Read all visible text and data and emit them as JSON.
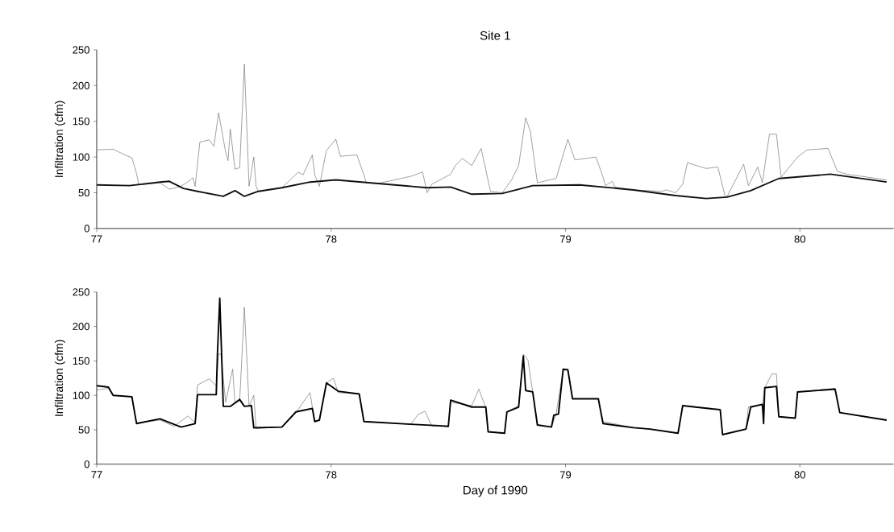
{
  "chart_data": [
    {
      "type": "line",
      "title": "Site 1",
      "ylabel": "Infiltration (cfm)",
      "xlim": [
        77,
        80.4
      ],
      "ylim": [
        0,
        250
      ],
      "xticks": [
        77,
        78,
        79,
        80
      ],
      "yticks": [
        0,
        50,
        100,
        150,
        200,
        250
      ],
      "series": [
        {
          "color": "#777777",
          "x": [
            77.0,
            77.07,
            77.12,
            77.15,
            77.17,
            77.18,
            77.27,
            77.31,
            77.35,
            77.38,
            77.41,
            77.42,
            77.44,
            77.48,
            77.5,
            77.52,
            77.55,
            77.56,
            77.57,
            77.59,
            77.61,
            77.63,
            77.65,
            77.67,
            77.68,
            77.69,
            77.79,
            77.86,
            77.88,
            77.92,
            77.93,
            77.95,
            77.98,
            78.02,
            78.04,
            78.11,
            78.14,
            78.15,
            78.2,
            78.34,
            78.39,
            78.41,
            78.43,
            78.51,
            78.53,
            78.56,
            78.6,
            78.64,
            78.68,
            78.73,
            78.77,
            78.8,
            78.83,
            78.85,
            78.88,
            78.96,
            79.01,
            79.04,
            79.13,
            79.16,
            79.17,
            79.2,
            79.21,
            79.29,
            79.41,
            79.43,
            79.47,
            79.5,
            79.52,
            79.6,
            79.65,
            79.68,
            79.69,
            79.76,
            79.78,
            79.82,
            79.84,
            79.87,
            79.9,
            79.92,
            79.99,
            80.03,
            80.12,
            80.16,
            80.2,
            80.37
          ],
          "values": [
            110,
            111,
            103,
            99,
            77,
            61,
            64,
            55,
            58,
            63,
            71,
            59,
            121,
            124,
            115,
            162,
            107,
            95,
            139,
            83,
            85,
            230,
            59,
            100,
            59,
            52,
            57,
            79,
            75,
            103,
            75,
            59,
            109,
            125,
            101,
            103,
            75,
            64,
            63,
            73,
            79,
            50,
            62,
            76,
            88,
            98,
            88,
            112,
            52,
            50,
            68,
            88,
            155,
            136,
            64,
            70,
            125,
            96,
            100,
            72,
            60,
            66,
            58,
            54,
            52,
            54,
            50,
            62,
            92,
            84,
            86,
            46,
            45,
            90,
            60,
            86,
            64,
            132,
            132,
            72,
            100,
            110,
            112,
            80,
            76,
            68
          ]
        },
        {
          "color": "#111111",
          "x": [
            77.0,
            77.14,
            77.27,
            77.31,
            77.37,
            77.43,
            77.54,
            77.59,
            77.63,
            77.69,
            77.79,
            77.91,
            78.02,
            78.2,
            78.41,
            78.51,
            78.6,
            78.73,
            78.86,
            79.06,
            79.29,
            79.47,
            79.6,
            79.69,
            79.79,
            79.91,
            80.13,
            80.37
          ],
          "values": [
            61,
            60,
            65,
            66,
            56,
            52,
            45,
            53,
            45,
            52,
            57,
            65,
            68,
            63,
            57,
            58,
            48,
            49,
            60,
            61,
            54,
            46,
            42,
            44,
            53,
            70,
            76,
            65
          ]
        }
      ]
    },
    {
      "type": "line",
      "xlabel": "Day of 1990",
      "ylabel": "Infiltration (cfm)",
      "xlim": [
        77,
        80.4
      ],
      "ylim": [
        0,
        250
      ],
      "xticks": [
        77,
        78,
        79,
        80
      ],
      "yticks": [
        0,
        50,
        100,
        150,
        200,
        250
      ],
      "series": [
        {
          "color": "#777777",
          "x": [
            77.0,
            77.05,
            77.07,
            77.15,
            77.17,
            77.27,
            77.33,
            77.39,
            77.42,
            77.43,
            77.48,
            77.51,
            77.52,
            77.53,
            77.55,
            77.58,
            77.59,
            77.61,
            77.63,
            77.65,
            77.67,
            77.68,
            77.79,
            77.85,
            77.91,
            77.93,
            77.95,
            77.98,
            78.01,
            78.03,
            78.12,
            78.14,
            78.34,
            78.37,
            78.4,
            78.43,
            78.5,
            78.51,
            78.6,
            78.63,
            78.66,
            78.67,
            78.74,
            78.75,
            78.8,
            78.82,
            78.84,
            78.86,
            78.88,
            78.94,
            78.96,
            78.99,
            79.01,
            79.03,
            79.14,
            79.16,
            79.29,
            79.36,
            79.48,
            79.5,
            79.66,
            79.67,
            79.77,
            79.78,
            79.84,
            79.85,
            79.88,
            79.9,
            79.91,
            79.98,
            79.99,
            80.15,
            80.17,
            80.37
          ],
          "values": [
            108,
            110,
            100,
            97,
            60,
            64,
            55,
            70,
            60,
            115,
            124,
            114,
            160,
            160,
            90,
            138,
            88,
            92,
            228,
            84,
            100,
            52,
            54,
            75,
            104,
            62,
            64,
            118,
            125,
            104,
            102,
            62,
            58,
            72,
            77,
            55,
            55,
            90,
            85,
            109,
            82,
            47,
            45,
            76,
            85,
            160,
            151,
            105,
            57,
            54,
            73,
            136,
            138,
            95,
            95,
            62,
            53,
            51,
            45,
            85,
            80,
            43,
            51,
            83,
            87,
            111,
            131,
            131,
            69,
            67,
            105,
            110,
            75,
            64
          ]
        },
        {
          "color": "#000000",
          "x": [
            77.0,
            77.05,
            77.07,
            77.15,
            77.17,
            77.27,
            77.36,
            77.42,
            77.43,
            77.51,
            77.515,
            77.525,
            77.54,
            77.57,
            77.61,
            77.63,
            77.66,
            77.67,
            77.79,
            77.85,
            77.92,
            77.93,
            77.95,
            77.98,
            78.03,
            78.12,
            78.14,
            78.34,
            78.46,
            78.5,
            78.51,
            78.6,
            78.66,
            78.67,
            78.74,
            78.75,
            78.8,
            78.82,
            78.83,
            78.86,
            78.88,
            78.94,
            78.95,
            78.97,
            78.99,
            79.01,
            79.03,
            79.14,
            79.16,
            79.29,
            79.36,
            79.48,
            79.5,
            79.66,
            79.67,
            79.77,
            79.79,
            79.84,
            79.845,
            79.85,
            79.9,
            79.91,
            79.98,
            79.99,
            80.15,
            80.17,
            80.37
          ],
          "values": [
            114,
            112,
            100,
            98,
            59,
            66,
            54,
            59,
            101,
            101,
            160,
            241,
            84,
            84,
            94,
            84,
            85,
            53,
            54,
            76,
            81,
            62,
            64,
            118,
            106,
            102,
            62,
            58,
            56,
            55,
            93,
            83,
            83,
            47,
            45,
            76,
            83,
            157,
            107,
            105,
            57,
            54,
            71,
            73,
            138,
            137,
            95,
            95,
            59,
            53,
            51,
            45,
            85,
            79,
            43,
            51,
            83,
            87,
            59,
            111,
            113,
            69,
            67,
            105,
            109,
            75,
            64
          ]
        }
      ]
    }
  ]
}
